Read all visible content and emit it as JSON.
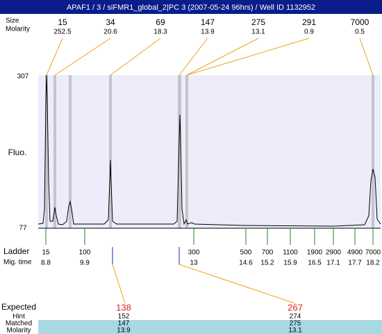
{
  "title": "APAF1 / 3 / siFMR1_global_2|PC 3 (2007-05-24 96hrs) / Well ID 1132952",
  "top": {
    "size_label": "Size",
    "molarity_label": "Molarity",
    "peaks": [
      {
        "size": "15",
        "molarity": "252.5"
      },
      {
        "size": "34",
        "molarity": "20.6"
      },
      {
        "size": "69",
        "molarity": "18.3"
      },
      {
        "size": "147",
        "molarity": "13.9"
      },
      {
        "size": "275",
        "molarity": "13.1"
      },
      {
        "size": "291",
        "molarity": "0.9"
      },
      {
        "size": "7000",
        "molarity": "0.5"
      }
    ]
  },
  "axis": {
    "label": "Fluo.",
    "max": "307",
    "min": "77"
  },
  "ladder": {
    "label": "Ladder",
    "time_label": "Mig. time",
    "items": [
      {
        "size": "15",
        "time": "8.8"
      },
      {
        "size": "100",
        "time": "9.9"
      },
      {
        "size": "300",
        "time": "13"
      },
      {
        "size": "500",
        "time": "14.6"
      },
      {
        "size": "700",
        "time": "15.2"
      },
      {
        "size": "1100",
        "time": "15.9"
      },
      {
        "size": "1900",
        "time": "16.5"
      },
      {
        "size": "2900",
        "time": "17.1"
      },
      {
        "size": "4900",
        "time": "17.7"
      },
      {
        "size": "7000",
        "time": "18.2"
      }
    ]
  },
  "results": {
    "expected_label": "Expected",
    "hint_label": "Hint",
    "matched_label": "Matched",
    "molarity_label": "Molarity",
    "columns": [
      {
        "expected": "138",
        "hint": "152",
        "matched": "147",
        "molarity": "13.9"
      },
      {
        "expected": "267",
        "hint": "274",
        "matched": "275",
        "molarity": "13.1"
      }
    ]
  }
}
